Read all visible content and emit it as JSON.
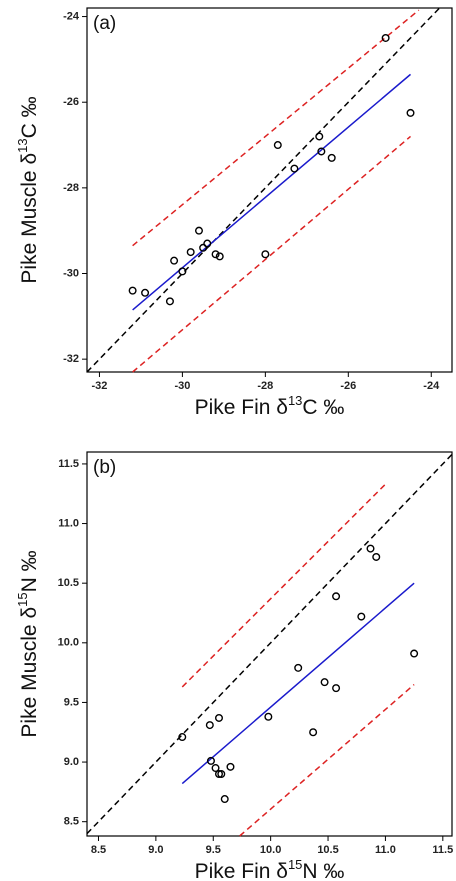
{
  "chart_data": [
    {
      "type": "scatter",
      "panel_label": "(a)",
      "x_label": {
        "text": "Pike Fin δ",
        "sup": "13",
        "suffix": "C ‰"
      },
      "y_label": {
        "text": "Pike Muscle δ",
        "sup": "13",
        "suffix": "C ‰"
      },
      "xlim": [
        -32.3,
        -23.5
      ],
      "ylim": [
        -32.3,
        -23.8
      ],
      "xticks": [
        -32,
        -30,
        -28,
        -26,
        -24
      ],
      "yticks": [
        -32,
        -30,
        -28,
        -26,
        -24
      ],
      "point_color": "#000000",
      "x": [
        -31.2,
        -30.9,
        -30.3,
        -30.2,
        -30.0,
        -29.8,
        -29.6,
        -29.5,
        -29.4,
        -29.2,
        -29.1,
        -28.0,
        -27.7,
        -27.3,
        -26.7,
        -26.65,
        -26.4,
        -25.1,
        -24.5
      ],
      "y": [
        -30.4,
        -30.45,
        -30.65,
        -29.7,
        -29.95,
        -29.5,
        -29.0,
        -29.4,
        -29.3,
        -29.55,
        -29.6,
        -29.55,
        -27.0,
        -27.55,
        -26.8,
        -27.15,
        -27.3,
        -24.5,
        -26.25
      ],
      "lines": [
        {
          "x": [
            -32.3,
            -23.8
          ],
          "y": [
            -32.3,
            -23.8
          ],
          "color": "#000000",
          "dashed": true
        },
        {
          "x": [
            -31.2,
            -24.5
          ],
          "y": [
            -30.85,
            -25.35
          ],
          "color": "#1a1acc",
          "dashed": false
        },
        {
          "x": [
            -31.2,
            -24.3
          ],
          "y": [
            -29.35,
            -23.85
          ],
          "color": "#dd2222",
          "dashed": true
        },
        {
          "x": [
            -31.2,
            -24.5
          ],
          "y": [
            -32.3,
            -26.8
          ],
          "color": "#dd2222",
          "dashed": true
        }
      ]
    },
    {
      "type": "scatter",
      "panel_label": "(b)",
      "x_label": {
        "text": "Pike Fin δ",
        "sup": "15",
        "suffix": "N ‰"
      },
      "y_label": {
        "text": "Pike Muscle δ",
        "sup": "15",
        "suffix": "N ‰"
      },
      "xlim": [
        8.4,
        11.58
      ],
      "ylim": [
        8.38,
        11.6
      ],
      "xticks": [
        8.5,
        9.0,
        9.5,
        10.0,
        10.5,
        11.0,
        11.5
      ],
      "yticks": [
        8.5,
        9.0,
        9.5,
        10.0,
        10.5,
        11.0,
        11.5
      ],
      "tick_labels_x": [
        "8.5",
        "9.0",
        "9.5",
        "10.0",
        "10.5",
        "11.0",
        "11.5"
      ],
      "tick_labels_y": [
        "8.5",
        "9.0",
        "9.5",
        "10.0",
        "10.5",
        "11.0",
        "11.5"
      ],
      "point_color": "#000000",
      "x": [
        9.23,
        9.47,
        9.48,
        9.55,
        9.52,
        9.55,
        9.57,
        9.6,
        9.65,
        9.98,
        10.24,
        10.37,
        10.47,
        10.57,
        10.57,
        10.79,
        10.87,
        10.92,
        11.25
      ],
      "y": [
        9.21,
        9.31,
        9.01,
        9.37,
        8.95,
        8.9,
        8.9,
        8.69,
        8.96,
        9.38,
        9.79,
        9.25,
        9.67,
        9.62,
        10.39,
        10.22,
        10.79,
        10.72,
        9.91
      ],
      "lines": [
        {
          "x": [
            8.4,
            11.58
          ],
          "y": [
            8.4,
            11.58
          ],
          "color": "#000000",
          "dashed": true
        },
        {
          "x": [
            9.23,
            11.25
          ],
          "y": [
            8.82,
            10.5
          ],
          "color": "#1a1acc",
          "dashed": false
        },
        {
          "x": [
            9.23,
            11.0
          ],
          "y": [
            9.63,
            11.33
          ],
          "color": "#dd2222",
          "dashed": true
        },
        {
          "x": [
            9.73,
            11.25
          ],
          "y": [
            8.38,
            9.65
          ],
          "color": "#dd2222",
          "dashed": true
        }
      ]
    }
  ]
}
